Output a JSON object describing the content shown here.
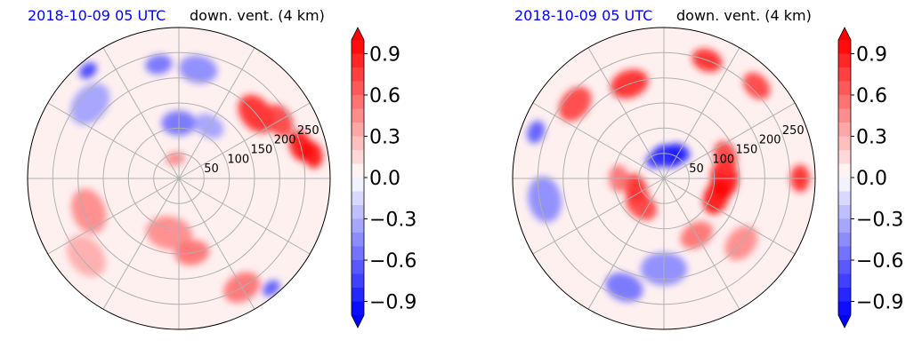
{
  "chart_data": [
    {
      "type": "polar-contourf",
      "title_left": "2018-10-09 05 UTC",
      "title_right": "down. vent. (4 km)",
      "title_left_color": "#0000ff",
      "radial_ticks": [
        "50",
        "100",
        "150",
        "200",
        "250"
      ],
      "radial_values": [
        50,
        100,
        150,
        200,
        250
      ],
      "r_max": 300,
      "angular_gridlines_deg": [
        0,
        30,
        60,
        90,
        120,
        150,
        180,
        210,
        240,
        270,
        300,
        330
      ],
      "colormap": "bwr",
      "color_limits": [
        -1.0,
        1.0
      ],
      "colorbar_ticks": [
        "0.9",
        "0.6",
        "0.3",
        "0.0",
        "−0.3",
        "−0.6",
        "−0.9"
      ],
      "colorbar_values": [
        0.9,
        0.6,
        0.3,
        0.0,
        -0.3,
        -0.6,
        -0.9
      ],
      "colorbar_extend": "both",
      "features": [
        {
          "theta": 40,
          "r": 200,
          "v": 0.9,
          "w": 55
        },
        {
          "theta": 15,
          "r": 250,
          "v": 1.0,
          "w": 40
        },
        {
          "theta": 10,
          "r": 270,
          "v": 1.0,
          "w": 35
        },
        {
          "theta": 30,
          "r": 230,
          "v": 0.8,
          "w": 45
        },
        {
          "theta": 90,
          "r": 110,
          "v": -0.6,
          "w": 45
        },
        {
          "theta": 80,
          "r": 220,
          "v": -0.5,
          "w": 50
        },
        {
          "theta": 100,
          "r": 230,
          "v": -0.6,
          "w": 35
        },
        {
          "theta": 140,
          "r": 230,
          "v": -0.4,
          "w": 60
        },
        {
          "theta": 130,
          "r": 280,
          "v": -0.8,
          "w": 25
        },
        {
          "theta": 200,
          "r": 190,
          "v": 0.5,
          "w": 60
        },
        {
          "theta": 220,
          "r": 240,
          "v": 0.35,
          "w": 60
        },
        {
          "theta": 260,
          "r": 110,
          "v": 0.5,
          "w": 60
        },
        {
          "theta": 280,
          "r": 150,
          "v": 0.6,
          "w": 45
        },
        {
          "theta": 300,
          "r": 250,
          "v": 0.6,
          "w": 50
        },
        {
          "theta": 310,
          "r": 285,
          "v": -0.7,
          "w": 25
        },
        {
          "theta": 100,
          "r": 40,
          "v": 0.5,
          "w": 25
        },
        {
          "theta": 60,
          "r": 120,
          "v": -0.4,
          "w": 40
        }
      ]
    },
    {
      "type": "polar-contourf",
      "title_left": "2018-10-09 05 UTC",
      "title_right": "down. vent. (4 km)",
      "title_left_color": "#0000ff",
      "radial_ticks": [
        "50",
        "100",
        "150",
        "200",
        "250"
      ],
      "radial_values": [
        50,
        100,
        150,
        200,
        250
      ],
      "r_max": 300,
      "angular_gridlines_deg": [
        0,
        30,
        60,
        90,
        120,
        150,
        180,
        210,
        240,
        270,
        300,
        330
      ],
      "colormap": "bwr",
      "color_limits": [
        -1.0,
        1.0
      ],
      "colorbar_ticks": [
        "0.9",
        "0.6",
        "0.3",
        "0.0",
        "−0.3",
        "−0.6",
        "−0.9"
      ],
      "colorbar_values": [
        0.9,
        0.6,
        0.3,
        0.0,
        -0.3,
        -0.6,
        -0.9
      ],
      "colorbar_extend": "both",
      "features": [
        {
          "theta": 80,
          "r": 45,
          "v": -1.0,
          "w": 40
        },
        {
          "theta": 60,
          "r": 60,
          "v": -0.9,
          "w": 30
        },
        {
          "theta": 110,
          "r": 40,
          "v": -0.8,
          "w": 30
        },
        {
          "theta": 0,
          "r": 120,
          "v": 1.0,
          "w": 50
        },
        {
          "theta": -20,
          "r": 110,
          "v": 1.0,
          "w": 45
        },
        {
          "theta": 20,
          "r": 130,
          "v": 0.8,
          "w": 40
        },
        {
          "theta": 200,
          "r": 60,
          "v": 0.9,
          "w": 40
        },
        {
          "theta": 230,
          "r": 70,
          "v": 0.8,
          "w": 45
        },
        {
          "theta": 180,
          "r": 90,
          "v": 0.6,
          "w": 35
        },
        {
          "theta": 110,
          "r": 200,
          "v": 0.9,
          "w": 50
        },
        {
          "theta": 140,
          "r": 230,
          "v": 0.8,
          "w": 50
        },
        {
          "theta": 70,
          "r": 250,
          "v": 0.9,
          "w": 40
        },
        {
          "theta": 45,
          "r": 260,
          "v": 0.8,
          "w": 40
        },
        {
          "theta": 0,
          "r": 270,
          "v": 0.9,
          "w": 35
        },
        {
          "theta": 270,
          "r": 180,
          "v": -0.5,
          "w": 60
        },
        {
          "theta": 250,
          "r": 230,
          "v": -0.6,
          "w": 50
        },
        {
          "theta": 190,
          "r": 240,
          "v": -0.5,
          "w": 60
        },
        {
          "theta": 160,
          "r": 270,
          "v": -0.7,
          "w": 30
        },
        {
          "theta": 300,
          "r": 130,
          "v": 0.6,
          "w": 45
        },
        {
          "theta": 320,
          "r": 200,
          "v": 0.5,
          "w": 50
        }
      ]
    }
  ]
}
